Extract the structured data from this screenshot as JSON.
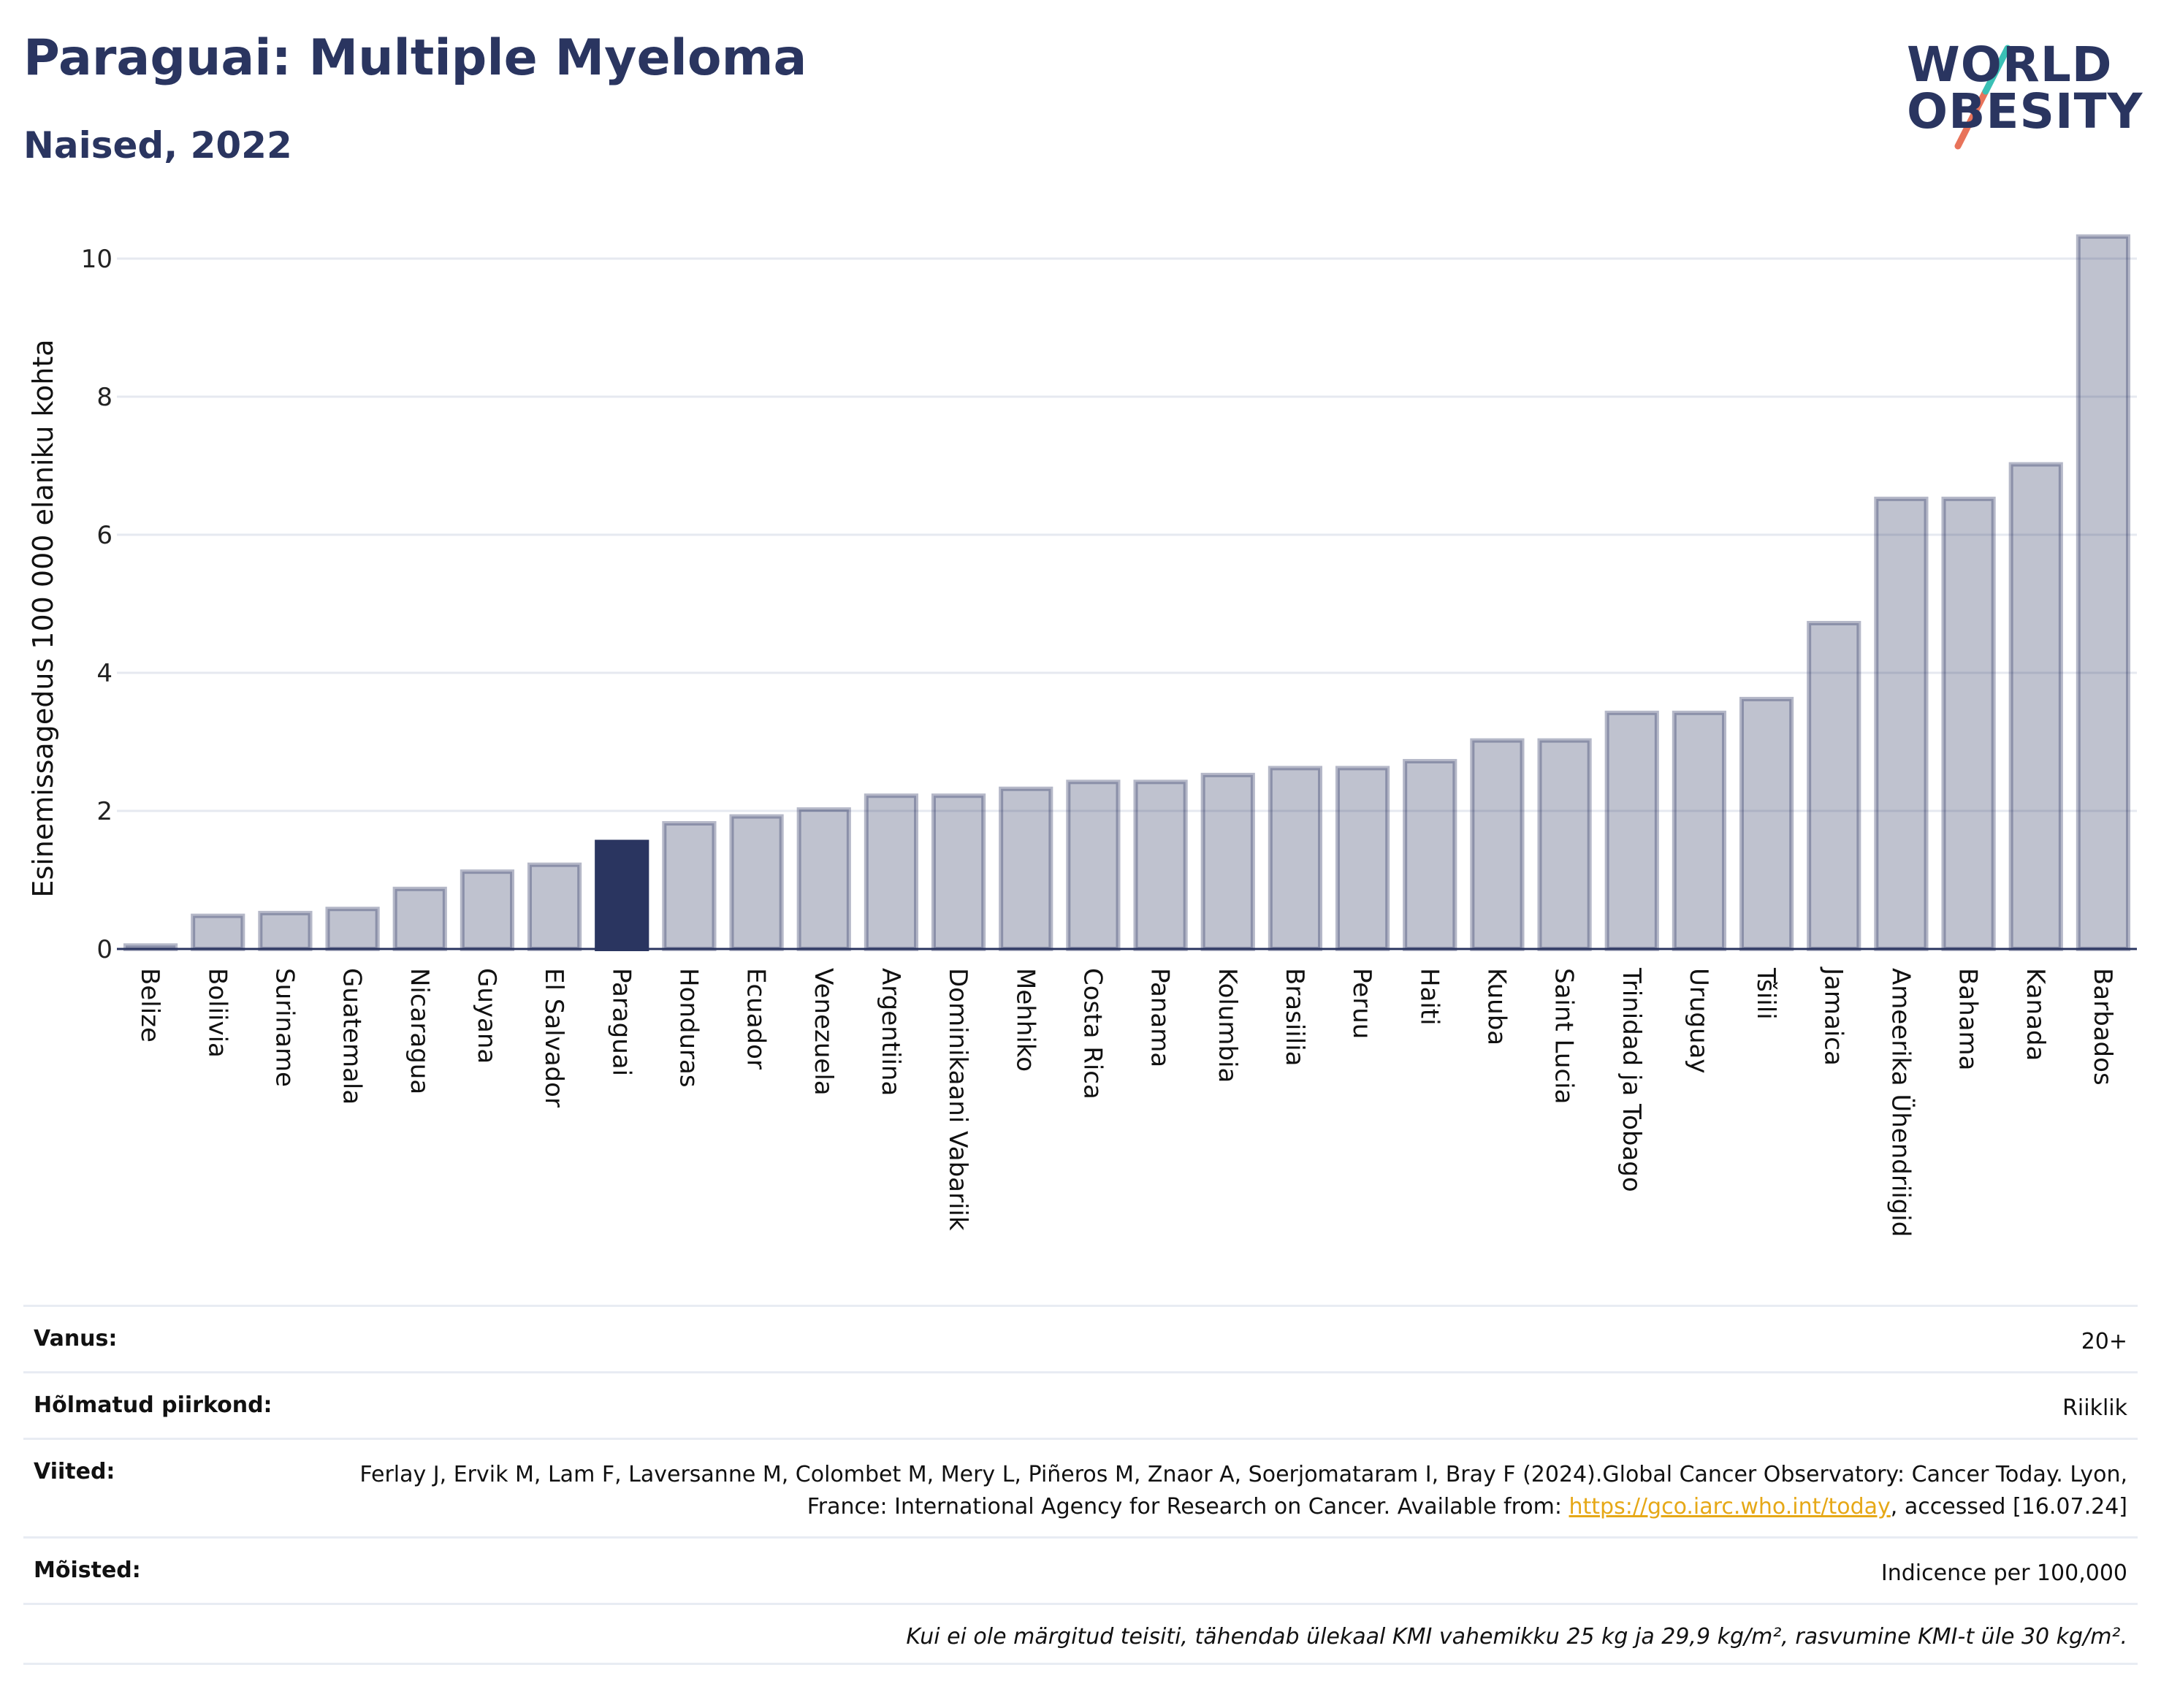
{
  "header": {
    "title": "Paraguai: Multiple Myeloma",
    "subtitle": "Naised, 2022"
  },
  "logo": {
    "line1": "WORLD",
    "line2": "OBESITY"
  },
  "chart_data": {
    "type": "bar",
    "ylabel": "Esinemissagedus 100 000 elaniku kohta",
    "ylim": [
      0,
      10.5
    ],
    "yticks": [
      0,
      2,
      4,
      6,
      8,
      10
    ],
    "grid": true,
    "highlight": "Paraguai",
    "colors": {
      "bar": "#2a3560",
      "bar_fill_opacity": 0.3,
      "highlight": "#2a3560",
      "grid": "#e6e9f0"
    },
    "categories": [
      "Belize",
      "Boliivia",
      "Suriname",
      "Guatemala",
      "Nicaragua",
      "Guyana",
      "El Salvador",
      "Paraguai",
      "Honduras",
      "Ecuador",
      "Venezuela",
      "Argentiina",
      "Dominikaani Vabariik",
      "Mehhiko",
      "Costa Rica",
      "Panama",
      "Kolumbia",
      "Brasiilia",
      "Peruu",
      "Haiti",
      "Kuuba",
      "Saint Lucia",
      "Trinidad ja Tobago",
      "Uruguay",
      "Tšiili",
      "Jamaica",
      "Ameerika Ühendriigid",
      "Bahama",
      "Kanada",
      "Barbados"
    ],
    "values": [
      0.05,
      0.48,
      0.52,
      0.58,
      0.87,
      1.12,
      1.22,
      1.55,
      1.82,
      1.92,
      2.02,
      2.22,
      2.22,
      2.32,
      2.42,
      2.42,
      2.52,
      2.62,
      2.62,
      2.72,
      3.02,
      3.02,
      3.42,
      3.42,
      3.62,
      4.72,
      6.52,
      6.52,
      7.02,
      10.32
    ]
  },
  "meta": [
    {
      "label": "Vanus:",
      "value": "20+"
    },
    {
      "label": "Hõlmatud piirkond:",
      "value": "Riiklik"
    },
    {
      "label": "Viited:",
      "value_pre": "Ferlay J, Ervik M, Lam F, Laversanne M, Colombet M, Mery L, Piñeros M, Znaor A, Soerjomataram I, Bray F (2024).Global Cancer Observatory: Cancer Today. Lyon, France: International Agency for Research on Cancer. Available from: ",
      "link": "https://gco.iarc.who.int/today",
      "value_post": ", accessed [16.07.24]"
    },
    {
      "label": "Mõisted:",
      "value": "Indicence per 100,000"
    }
  ],
  "note": "Kui ei ole märgitud teisiti, tähendab ülekaal KMI vahemikku 25 kg ja 29,9 kg/m², rasvumine KMI-t üle 30 kg/m²."
}
